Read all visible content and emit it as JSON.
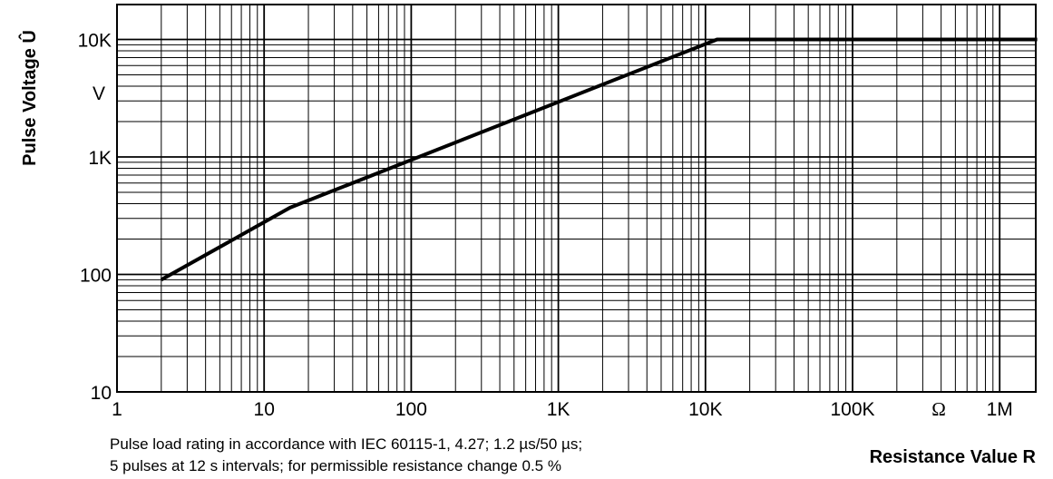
{
  "chart_data": {
    "type": "line",
    "x_scale": "log",
    "y_scale": "log",
    "xlim": [
      1,
      2000000
    ],
    "ylim": [
      10,
      15000
    ],
    "x_ticks": [
      {
        "value": 1,
        "label": "1"
      },
      {
        "value": 10,
        "label": "10"
      },
      {
        "value": 100,
        "label": "100"
      },
      {
        "value": 1000,
        "label": "1K"
      },
      {
        "value": 10000,
        "label": "10K"
      },
      {
        "value": 100000,
        "label": "100K"
      },
      {
        "value": 1000000,
        "label": "1M"
      }
    ],
    "y_ticks": [
      {
        "value": 10,
        "label": "10"
      },
      {
        "value": 100,
        "label": "100"
      },
      {
        "value": 1000,
        "label": "1K"
      },
      {
        "value": 10000,
        "label": "10K"
      }
    ],
    "y_unit": "V",
    "x_unit": "Ω",
    "ylabel": "Pulse Voltage Û",
    "xlabel": "Resistance Value R",
    "grid": true,
    "series": [
      {
        "x": [
          2,
          15,
          12000,
          1800000
        ],
        "y": [
          90,
          370,
          10000,
          10000
        ]
      }
    ],
    "notes": [
      "Pulse load rating in accordance with IEC 60115-1, 4.27; 1.2 µs/50 µs;",
      "5 pulses at 12 s intervals; for permissible resistance change 0.5 %"
    ]
  }
}
